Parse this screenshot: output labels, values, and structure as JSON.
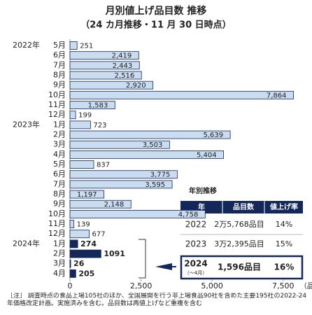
{
  "chart_data": {
    "type": "bar",
    "orientation": "horizontal",
    "title": "月別値上げ品目数 推移",
    "subtitle": "（24 カ月推移・11 月 30 日時点）",
    "groups": [
      {
        "year": "2022年",
        "color": "#c9dcf0",
        "categories": [
          "5月",
          "6月",
          "7月",
          "8月",
          "9月",
          "10月",
          "11月",
          "12月"
        ],
        "values": [
          251,
          2419,
          2443,
          2516,
          2920,
          7864,
          1583,
          199
        ],
        "value_labels": [
          "251",
          "2,419",
          "2,443",
          "2,516",
          "2,920",
          "7,864",
          "1,583",
          "199"
        ]
      },
      {
        "year": "2023年",
        "color": "#c9dcf0",
        "categories": [
          "1月",
          "2月",
          "3月",
          "4月",
          "5月",
          "6月",
          "7月",
          "8月",
          "9月",
          "10月",
          "11月",
          "12月"
        ],
        "values": [
          723,
          5639,
          3503,
          5404,
          837,
          3775,
          3595,
          1197,
          2148,
          4758,
          139,
          677
        ],
        "value_labels": [
          "723",
          "5,639",
          "3,503",
          "5,404",
          "837",
          "3,775",
          "3,595",
          "1,197",
          "2,148",
          "4,758",
          "139",
          "677"
        ]
      },
      {
        "year": "2024年",
        "color": "#14275a",
        "categories": [
          "1月",
          "2月",
          "3月",
          "4月"
        ],
        "values": [
          274,
          1091,
          26,
          205
        ]
      }
    ],
    "xlim": [
      0,
      7900
    ],
    "xticks": [
      0,
      {
        "value": 2500,
        "label": "2,500"
      },
      {
        "value": 5000,
        "label": "5,000"
      },
      {
        "value": 7500,
        "label": "7,500"
      }
    ],
    "x_unit": "（品目）",
    "table": {
      "title": "年別推移",
      "header": [
        "年",
        "品目数",
        "値上げ率"
      ],
      "rows": [
        {
          "year": "2022",
          "items": "2万5,768品目",
          "rate": "14%"
        },
        {
          "year": "2023",
          "items": "3万2,395品目",
          "rate": "15%"
        },
        {
          "year": "2024",
          "note": "（～4月）",
          "items": "1,596品目",
          "rate": "16%"
        }
      ]
    },
    "note": "［注］ 調査時点の食品上場105社のほか、全国展開を行う非上場食品90社を含めた主要195社の2022-24年価格改定計画。実施済みを含む。品目数は再値上げなど重複を含む"
  }
}
